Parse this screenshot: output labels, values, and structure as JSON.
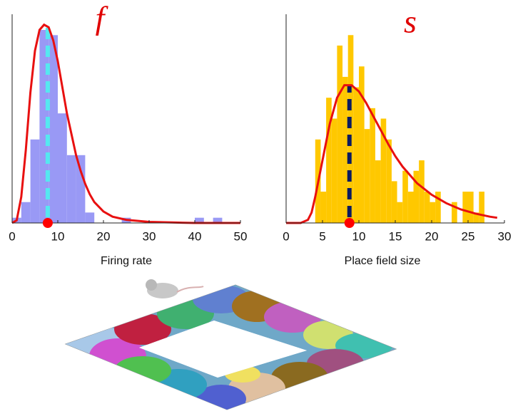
{
  "chart_data": [
    {
      "type": "histogram",
      "title": "f",
      "xlabel": "Firing rate",
      "bins": [
        0,
        2,
        4,
        6,
        8,
        10,
        12,
        14,
        16,
        18,
        20,
        22,
        24,
        26,
        28,
        30,
        32,
        34,
        36,
        38,
        40,
        42,
        44,
        46
      ],
      "values": [
        1,
        4,
        16,
        37,
        36,
        21,
        13,
        13,
        2,
        0,
        0,
        0,
        1,
        0,
        0,
        0,
        0,
        0,
        0,
        0,
        1,
        0,
        1
      ],
      "color": "#9999f5",
      "xlim": [
        0,
        50
      ],
      "xticks": [
        0,
        10,
        20,
        30,
        40,
        50
      ],
      "ylim": [
        0,
        40
      ],
      "curve_x": [
        0,
        1,
        2,
        3,
        4,
        5,
        6,
        7,
        8,
        9,
        10,
        11,
        12,
        13,
        14,
        15,
        16,
        17,
        18,
        20,
        22,
        25,
        30,
        35,
        40,
        50
      ],
      "curve_values": [
        0,
        0.5,
        5,
        14,
        25,
        33,
        37,
        38,
        37.5,
        35,
        31,
        26,
        21,
        17,
        13,
        10,
        7.5,
        5.5,
        4,
        2.2,
        1.2,
        0.6,
        0.2,
        0.1,
        0,
        0
      ],
      "curve_color": "#e81010",
      "marker_x": 7.8,
      "marker_color": "#ff0000",
      "line_color": "#55e8f0"
    },
    {
      "type": "histogram",
      "title": "s",
      "xlabel": "Place field size",
      "bins": [
        4,
        4.75,
        5.5,
        6.25,
        7,
        7.75,
        8.5,
        9.25,
        10,
        10.75,
        11.5,
        12.25,
        13,
        13.75,
        14.5,
        15.25,
        16,
        16.75,
        17.5,
        18.25,
        19,
        19.75,
        20.5,
        21.25,
        22,
        22.75,
        23.5,
        24.25,
        25,
        25.75,
        26.5,
        27.25
      ],
      "values": [
        8,
        3,
        12,
        10,
        17,
        14,
        18,
        13,
        15,
        9,
        11,
        6,
        10,
        8,
        4,
        2,
        5,
        3,
        5,
        6,
        3,
        2,
        3,
        0,
        0,
        2,
        0,
        3,
        3,
        1,
        3
      ],
      "color": "#ffc800",
      "xlim": [
        0,
        30
      ],
      "xticks": [
        0,
        5,
        10,
        15,
        20,
        25,
        30
      ],
      "ylim": [
        0,
        20
      ],
      "curve_x": [
        0,
        2,
        3,
        3.5,
        4,
        5,
        6,
        7,
        8,
        9,
        10,
        11,
        12,
        13,
        14,
        15,
        16,
        18,
        20,
        22,
        24,
        26,
        28,
        29
      ],
      "curve_values": [
        0,
        0,
        0.3,
        1,
        2.5,
        6,
        9.5,
        12,
        13.2,
        13.2,
        12.6,
        11.5,
        10.2,
        8.9,
        7.6,
        6.4,
        5.4,
        3.8,
        2.7,
        1.9,
        1.3,
        0.9,
        0.6,
        0.5
      ],
      "curve_color": "#e81010",
      "marker_x": 8.7,
      "marker_color": "#ff0000",
      "line_color": "#0a1a60"
    }
  ]
}
